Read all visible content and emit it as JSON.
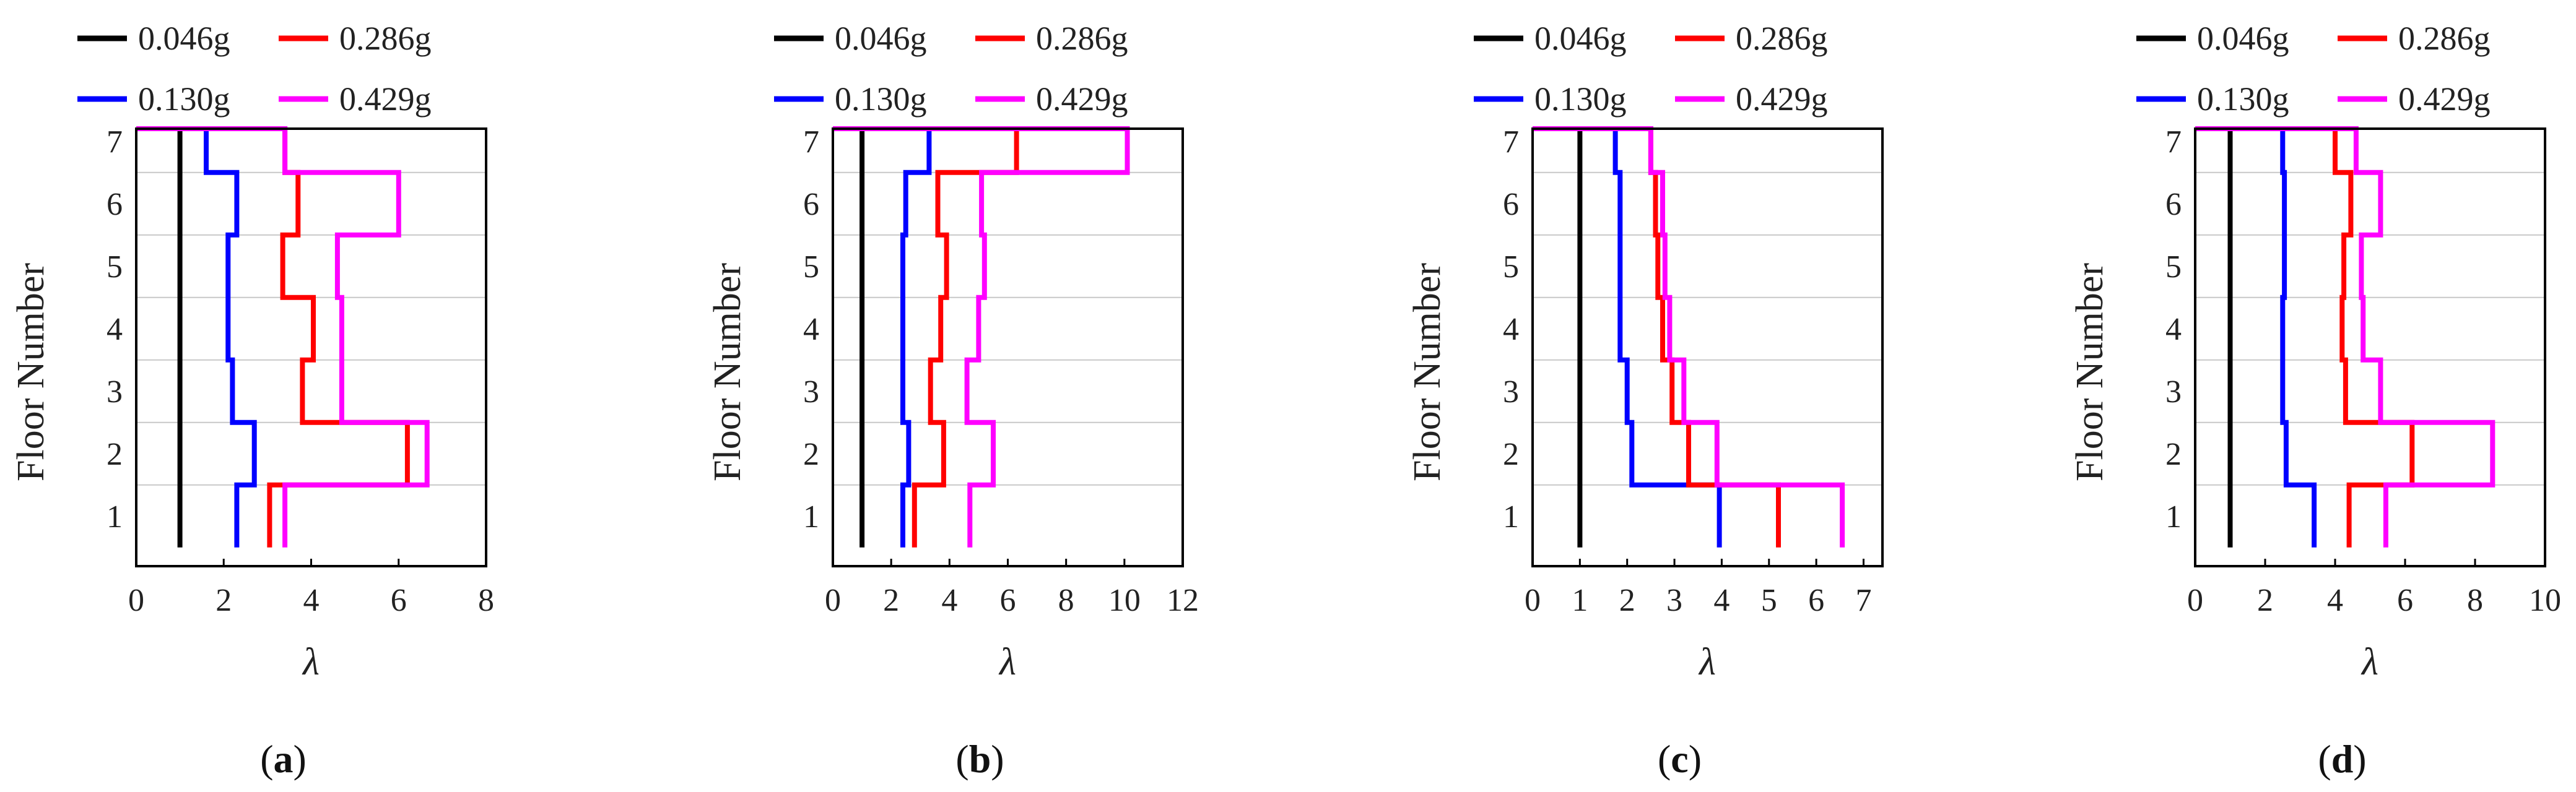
{
  "figure": {
    "ylabel": "Floor Number",
    "xlabel": "λ",
    "legend": {
      "placement": "top",
      "entries": [
        {
          "label": "0.046g",
          "color": "#000000"
        },
        {
          "label": "0.286g",
          "color": "#ff0000"
        },
        {
          "label": "0.130g",
          "color": "#0000ff"
        },
        {
          "label": "0.429g",
          "color": "#ff00ff"
        }
      ]
    }
  },
  "chart_data": [
    {
      "type": "line",
      "caption_letter": "a",
      "title": "",
      "xlabel": "λ",
      "ylabel": "Floor Number",
      "xlim": [
        0,
        8
      ],
      "xticks": [
        0,
        2,
        4,
        6,
        8
      ],
      "ylim": [
        0.2,
        7.2
      ],
      "yticks": [
        1,
        2,
        3,
        4,
        5,
        6,
        7
      ],
      "grid": "horizontal",
      "series": [
        {
          "name": "0.046g",
          "color": "#000000",
          "values": [
            1.0,
            1.0,
            1.0,
            1.0,
            1.0,
            1.0,
            1.0
          ]
        },
        {
          "name": "0.130g",
          "color": "#0000ff",
          "values": [
            2.3,
            2.7,
            2.2,
            2.1,
            2.1,
            2.3,
            1.6
          ]
        },
        {
          "name": "0.286g",
          "color": "#ff0000",
          "values": [
            3.05,
            6.2,
            3.8,
            4.05,
            3.35,
            3.7,
            3.4
          ]
        },
        {
          "name": "0.429g",
          "color": "#ff00ff",
          "values": [
            3.4,
            6.65,
            4.7,
            4.7,
            4.6,
            6.0,
            3.4
          ]
        }
      ]
    },
    {
      "type": "line",
      "caption_letter": "b",
      "title": "",
      "xlabel": "λ",
      "ylabel": "Floor Number",
      "xlim": [
        0,
        12
      ],
      "xticks": [
        0,
        2,
        4,
        6,
        8,
        10,
        12
      ],
      "ylim": [
        0.2,
        7.2
      ],
      "yticks": [
        1,
        2,
        3,
        4,
        5,
        6,
        7
      ],
      "grid": "horizontal",
      "series": [
        {
          "name": "0.046g",
          "color": "#000000",
          "values": [
            1.0,
            1.0,
            1.0,
            1.0,
            1.0,
            1.0,
            1.0
          ]
        },
        {
          "name": "0.130g",
          "color": "#0000ff",
          "values": [
            2.4,
            2.6,
            2.4,
            2.4,
            2.4,
            2.5,
            3.3
          ]
        },
        {
          "name": "0.286g",
          "color": "#ff0000",
          "values": [
            2.8,
            3.8,
            3.35,
            3.7,
            3.9,
            3.6,
            6.3
          ]
        },
        {
          "name": "0.429g",
          "color": "#ff00ff",
          "values": [
            4.7,
            5.5,
            4.6,
            5.0,
            5.2,
            5.1,
            10.1
          ]
        }
      ]
    },
    {
      "type": "line",
      "caption_letter": "c",
      "title": "",
      "xlabel": "λ",
      "ylabel": "Floor Number",
      "xlim": [
        0,
        7.4
      ],
      "xticks": [
        0,
        1,
        2,
        3,
        4,
        5,
        6,
        7
      ],
      "ylim": [
        0.2,
        7.2
      ],
      "yticks": [
        1,
        2,
        3,
        4,
        5,
        6,
        7
      ],
      "grid": "horizontal",
      "series": [
        {
          "name": "0.046g",
          "color": "#000000",
          "values": [
            1.0,
            1.0,
            1.0,
            1.0,
            1.0,
            1.0,
            1.0
          ]
        },
        {
          "name": "0.130g",
          "color": "#0000ff",
          "values": [
            3.95,
            2.1,
            2.0,
            1.85,
            1.85,
            1.85,
            1.75
          ]
        },
        {
          "name": "0.286g",
          "color": "#ff0000",
          "values": [
            5.2,
            3.3,
            2.95,
            2.75,
            2.65,
            2.6,
            2.5
          ]
        },
        {
          "name": "0.429g",
          "color": "#ff00ff",
          "values": [
            6.55,
            3.9,
            3.2,
            2.9,
            2.8,
            2.75,
            2.5
          ]
        }
      ]
    },
    {
      "type": "line",
      "caption_letter": "d",
      "title": "",
      "xlabel": "λ",
      "ylabel": "Floor Number",
      "xlim": [
        0,
        10
      ],
      "xticks": [
        0,
        2,
        4,
        6,
        8,
        10
      ],
      "ylim": [
        0.2,
        7.2
      ],
      "yticks": [
        1,
        2,
        3,
        4,
        5,
        6,
        7
      ],
      "grid": "horizontal",
      "series": [
        {
          "name": "0.046g",
          "color": "#000000",
          "values": [
            1.0,
            1.0,
            1.0,
            1.0,
            1.0,
            1.0,
            1.0
          ]
        },
        {
          "name": "0.130g",
          "color": "#0000ff",
          "values": [
            3.4,
            2.6,
            2.5,
            2.5,
            2.55,
            2.55,
            2.5
          ]
        },
        {
          "name": "0.286g",
          "color": "#ff0000",
          "values": [
            4.4,
            6.2,
            4.3,
            4.2,
            4.25,
            4.45,
            4.0
          ]
        },
        {
          "name": "0.429g",
          "color": "#ff00ff",
          "values": [
            5.45,
            8.5,
            5.3,
            4.8,
            4.75,
            5.3,
            4.6
          ]
        }
      ]
    }
  ]
}
